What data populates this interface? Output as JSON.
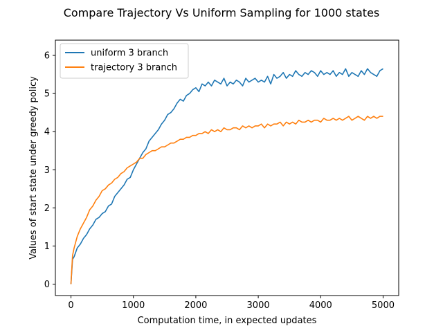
{
  "chart_data": {
    "type": "line",
    "title": "Compare Trajectory Vs Uniform Sampling for 1000 states",
    "xlabel": "Computation time, in expected updates",
    "ylabel": "Values of start state under greedy policy",
    "xlim": [
      -250,
      5250
    ],
    "ylim": [
      -0.3,
      6.4
    ],
    "xticks": [
      0,
      1000,
      2000,
      3000,
      4000,
      5000
    ],
    "yticks": [
      0,
      1,
      2,
      3,
      4,
      5,
      6
    ],
    "grid": false,
    "legend_position": "upper-left",
    "series": [
      {
        "name": "uniform 3 branch",
        "color": "#1f77b4",
        "x": [
          0,
          25,
          50,
          100,
          150,
          200,
          250,
          300,
          350,
          400,
          450,
          500,
          550,
          600,
          650,
          700,
          750,
          800,
          850,
          900,
          950,
          1000,
          1050,
          1100,
          1150,
          1200,
          1250,
          1300,
          1350,
          1400,
          1450,
          1500,
          1550,
          1600,
          1650,
          1700,
          1750,
          1800,
          1850,
          1900,
          1950,
          2000,
          2050,
          2100,
          2150,
          2200,
          2250,
          2300,
          2350,
          2400,
          2450,
          2500,
          2550,
          2600,
          2650,
          2700,
          2750,
          2800,
          2850,
          2900,
          2950,
          3000,
          3050,
          3100,
          3150,
          3200,
          3250,
          3300,
          3350,
          3400,
          3450,
          3500,
          3550,
          3600,
          3650,
          3700,
          3750,
          3800,
          3850,
          3900,
          3950,
          4000,
          4050,
          4100,
          4150,
          4200,
          4250,
          4300,
          4350,
          4400,
          4450,
          4500,
          4550,
          4600,
          4650,
          4700,
          4750,
          4800,
          4850,
          4900,
          4950,
          5000
        ],
        "y": [
          0.0,
          0.65,
          0.72,
          0.95,
          1.05,
          1.2,
          1.3,
          1.45,
          1.55,
          1.7,
          1.75,
          1.85,
          1.9,
          2.05,
          2.1,
          2.3,
          2.4,
          2.5,
          2.6,
          2.75,
          2.8,
          3.0,
          3.15,
          3.3,
          3.45,
          3.55,
          3.75,
          3.85,
          3.95,
          4.05,
          4.2,
          4.3,
          4.45,
          4.5,
          4.6,
          4.75,
          4.85,
          4.8,
          4.95,
          5.0,
          5.1,
          5.15,
          5.05,
          5.25,
          5.2,
          5.3,
          5.2,
          5.35,
          5.3,
          5.25,
          5.4,
          5.2,
          5.3,
          5.25,
          5.35,
          5.3,
          5.2,
          5.4,
          5.3,
          5.35,
          5.4,
          5.3,
          5.35,
          5.3,
          5.45,
          5.25,
          5.5,
          5.4,
          5.45,
          5.55,
          5.4,
          5.5,
          5.45,
          5.6,
          5.5,
          5.45,
          5.55,
          5.5,
          5.6,
          5.55,
          5.45,
          5.6,
          5.5,
          5.55,
          5.5,
          5.6,
          5.45,
          5.55,
          5.5,
          5.65,
          5.45,
          5.55,
          5.5,
          5.45,
          5.6,
          5.5,
          5.65,
          5.55,
          5.5,
          5.45,
          5.6,
          5.65
        ]
      },
      {
        "name": "trajectory 3 branch",
        "color": "#ff7f0e",
        "x": [
          0,
          25,
          50,
          100,
          150,
          200,
          250,
          300,
          350,
          400,
          450,
          500,
          550,
          600,
          650,
          700,
          750,
          800,
          850,
          900,
          950,
          1000,
          1050,
          1100,
          1150,
          1200,
          1250,
          1300,
          1350,
          1400,
          1450,
          1500,
          1550,
          1600,
          1650,
          1700,
          1750,
          1800,
          1850,
          1900,
          1950,
          2000,
          2050,
          2100,
          2150,
          2200,
          2250,
          2300,
          2350,
          2400,
          2450,
          2500,
          2550,
          2600,
          2650,
          2700,
          2750,
          2800,
          2850,
          2900,
          2950,
          3000,
          3050,
          3100,
          3150,
          3200,
          3250,
          3300,
          3350,
          3400,
          3450,
          3500,
          3550,
          3600,
          3650,
          3700,
          3750,
          3800,
          3850,
          3900,
          3950,
          4000,
          4050,
          4100,
          4150,
          4200,
          4250,
          4300,
          4350,
          4400,
          4450,
          4500,
          4550,
          4600,
          4650,
          4700,
          4750,
          4800,
          4850,
          4900,
          4950,
          5000
        ],
        "y": [
          0.0,
          0.75,
          0.95,
          1.25,
          1.45,
          1.6,
          1.75,
          1.95,
          2.05,
          2.2,
          2.3,
          2.45,
          2.5,
          2.6,
          2.65,
          2.75,
          2.8,
          2.9,
          2.95,
          3.05,
          3.1,
          3.15,
          3.2,
          3.3,
          3.3,
          3.4,
          3.45,
          3.5,
          3.5,
          3.55,
          3.6,
          3.6,
          3.65,
          3.7,
          3.7,
          3.75,
          3.8,
          3.8,
          3.85,
          3.85,
          3.9,
          3.9,
          3.95,
          3.95,
          4.0,
          3.95,
          4.05,
          4.0,
          4.05,
          4.0,
          4.1,
          4.05,
          4.05,
          4.1,
          4.1,
          4.05,
          4.15,
          4.1,
          4.15,
          4.1,
          4.15,
          4.15,
          4.2,
          4.1,
          4.2,
          4.15,
          4.2,
          4.2,
          4.25,
          4.15,
          4.25,
          4.2,
          4.25,
          4.2,
          4.3,
          4.25,
          4.25,
          4.3,
          4.25,
          4.3,
          4.3,
          4.25,
          4.35,
          4.3,
          4.3,
          4.35,
          4.3,
          4.35,
          4.3,
          4.35,
          4.4,
          4.3,
          4.35,
          4.4,
          4.35,
          4.3,
          4.4,
          4.35,
          4.4,
          4.35,
          4.4,
          4.4
        ]
      }
    ]
  }
}
